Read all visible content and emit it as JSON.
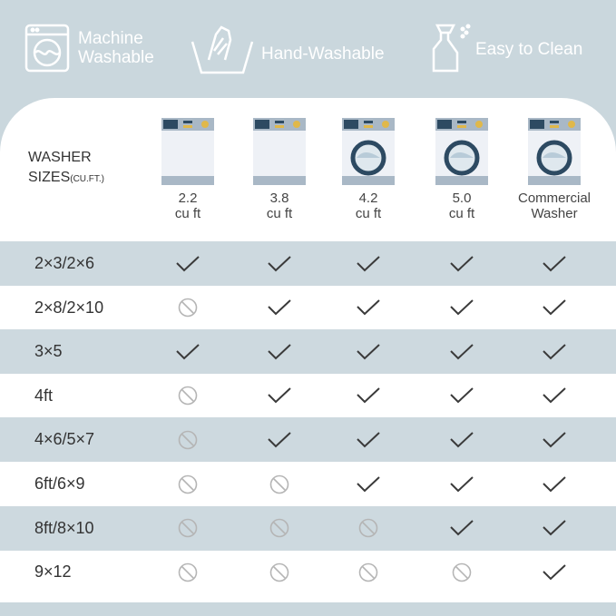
{
  "features": [
    {
      "label": "Machine\nWashable",
      "icon": "washing-machine-icon"
    },
    {
      "label": "Hand-Washable",
      "icon": "hand-wash-icon"
    },
    {
      "label": "Easy to Clean",
      "icon": "spray-bottle-icon"
    }
  ],
  "table": {
    "header_label": "WASHER",
    "header_label2": "SIZES",
    "header_unit": "(CU.FT.)",
    "columns": [
      {
        "line1": "2.2",
        "line2": "cu ft",
        "drum": false
      },
      {
        "line1": "3.8",
        "line2": "cu ft",
        "drum": false
      },
      {
        "line1": "4.2",
        "line2": "cu ft",
        "drum": true
      },
      {
        "line1": "5.0",
        "line2": "cu ft",
        "drum": true
      },
      {
        "line1": "Commercial",
        "line2": "Washer",
        "drum": true
      }
    ],
    "rows": [
      {
        "size": "2×3/2×6",
        "fit": [
          1,
          1,
          1,
          1,
          1
        ]
      },
      {
        "size": "2×8/2×10",
        "fit": [
          0,
          1,
          1,
          1,
          1
        ]
      },
      {
        "size": "3×5",
        "fit": [
          1,
          1,
          1,
          1,
          1
        ]
      },
      {
        "size": "4ft",
        "fit": [
          0,
          1,
          1,
          1,
          1
        ]
      },
      {
        "size": "4×6/5×7",
        "fit": [
          0,
          1,
          1,
          1,
          1
        ]
      },
      {
        "size": "6ft/6×9",
        "fit": [
          0,
          0,
          1,
          1,
          1
        ]
      },
      {
        "size": "8ft/8×10",
        "fit": [
          0,
          0,
          0,
          1,
          1
        ]
      },
      {
        "size": "9×12",
        "fit": [
          0,
          0,
          0,
          0,
          1
        ]
      }
    ]
  },
  "colors": {
    "background": "#cad7dd",
    "row_alt": "#cdd9df",
    "check": "#3a3a3a",
    "no": "#b5b5b5"
  }
}
